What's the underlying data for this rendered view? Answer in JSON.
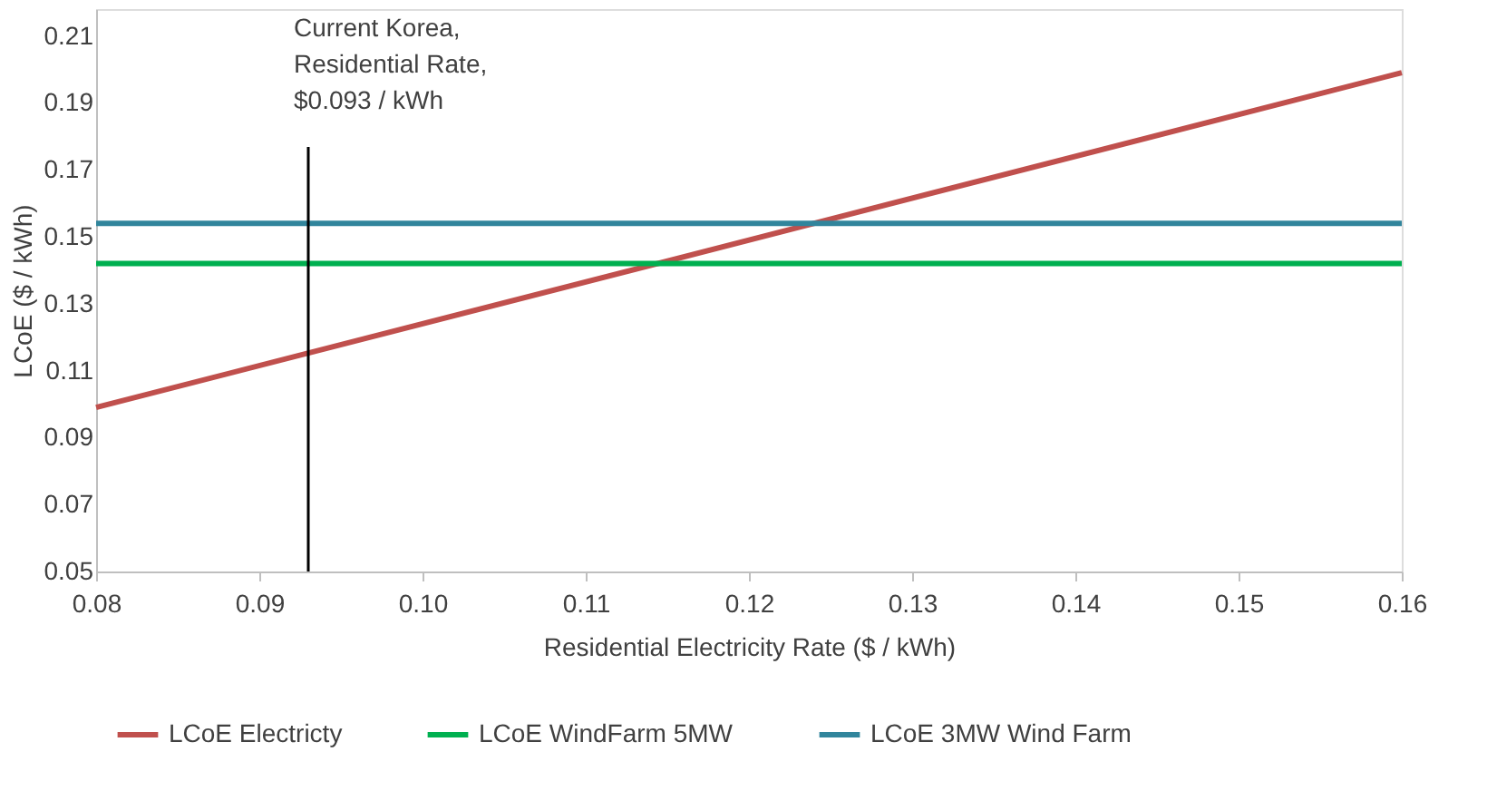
{
  "chart_data": {
    "type": "line",
    "xlabel": "Residential Electricity Rate ($ / kWh)",
    "ylabel": "LCoE  ($ / kWh)",
    "x": [
      0.08,
      0.16
    ],
    "series": [
      {
        "name": "LCoE Electricty",
        "color": "#c0504d",
        "values": [
          0.099,
          0.199
        ]
      },
      {
        "name": "LCoE WindFarm 5MW",
        "color": "#00b050",
        "values": [
          0.142,
          0.142
        ]
      },
      {
        "name": "LCoE 3MW Wind Farm",
        "color": "#31859c",
        "values": [
          0.154,
          0.154
        ]
      }
    ],
    "xlim": [
      0.08,
      0.16
    ],
    "xticks": [
      {
        "value": 0.08,
        "label": "0.08"
      },
      {
        "value": 0.09,
        "label": "0.09"
      },
      {
        "value": 0.1,
        "label": "0.10"
      },
      {
        "value": 0.11,
        "label": "0.11"
      },
      {
        "value": 0.12,
        "label": "0.12"
      },
      {
        "value": 0.13,
        "label": "0.13"
      },
      {
        "value": 0.14,
        "label": "0.14"
      },
      {
        "value": 0.15,
        "label": "0.15"
      },
      {
        "value": 0.16,
        "label": "0.16"
      }
    ],
    "ylim": [
      0.05,
      0.218
    ],
    "yticks": [
      0.05,
      0.07,
      0.09,
      0.11,
      0.13,
      0.15,
      0.17,
      0.19,
      0.21
    ],
    "ref_lines": [
      {
        "axis": "x",
        "value": 0.093,
        "label": "Current Korea,\nResidential Rate,\n$0.093 / kWh",
        "color": "#000000"
      }
    ],
    "grid": false,
    "legend": "bottom",
    "marker": "none",
    "line_style": "solid"
  }
}
